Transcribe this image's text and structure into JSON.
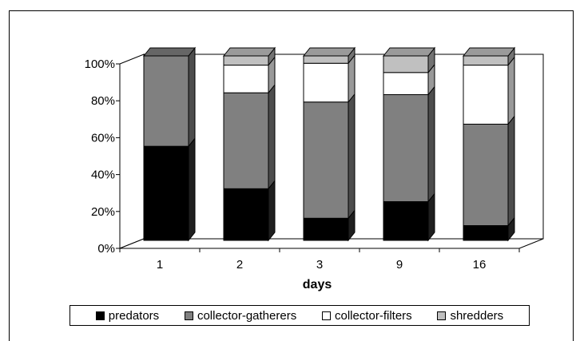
{
  "chart_data": {
    "type": "bar",
    "stacked": "percent",
    "three_d": true,
    "categories": [
      "1",
      "2",
      "3",
      "9",
      "16"
    ],
    "xlabel": "days",
    "ylabel": "",
    "title": "",
    "ylim": [
      0,
      100
    ],
    "yticks": [
      "0%",
      "20%",
      "40%",
      "60%",
      "80%",
      "100%"
    ],
    "grid": false,
    "legend_position": "bottom",
    "series": [
      {
        "name": "predators",
        "color": "#000000",
        "values": [
          51,
          28,
          12,
          21,
          8
        ]
      },
      {
        "name": "collector-gatherers",
        "color": "#808080",
        "values": [
          49,
          52,
          63,
          58,
          55
        ]
      },
      {
        "name": "collector-filters",
        "color": "#ffffff",
        "values": [
          0,
          15,
          21,
          12,
          32
        ]
      },
      {
        "name": "shredders",
        "color": "#c0c0c0",
        "values": [
          0,
          5,
          4,
          9,
          5
        ]
      }
    ]
  }
}
